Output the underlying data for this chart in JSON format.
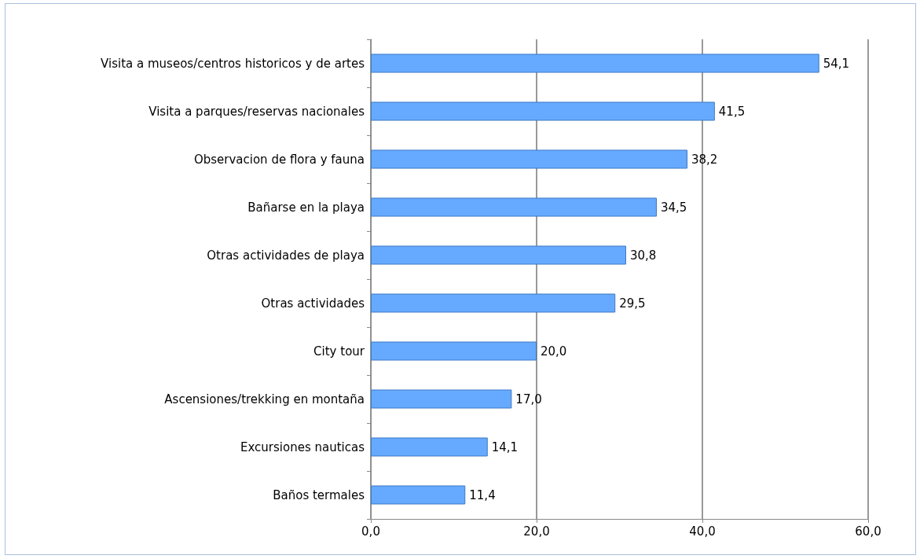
{
  "chart_data": {
    "type": "bar",
    "orientation": "horizontal",
    "categories": [
      "Visita a museos/centros historicos y de artes",
      "Visita a parques/reservas nacionales",
      "Observacion de flora y fauna",
      "Bañarse en la playa",
      "Otras actividades de playa",
      "Otras actividades",
      "City tour",
      "Ascensiones/trekking en montaña",
      "Excursiones nauticas",
      "Baños termales"
    ],
    "values": [
      54.1,
      41.5,
      38.2,
      34.5,
      30.8,
      29.5,
      20.0,
      17.0,
      14.1,
      11.4
    ],
    "value_labels": [
      "54,1",
      "41,5",
      "38,2",
      "34,5",
      "30,8",
      "29,5",
      "20,0",
      "17,0",
      "14,1",
      "11,4"
    ],
    "color": "#66aaff",
    "xlim": [
      0,
      60
    ],
    "xticks": [
      {
        "value": 0,
        "label": "0,0"
      },
      {
        "value": 20,
        "label": "20,0"
      },
      {
        "value": 40,
        "label": "40,0"
      },
      {
        "value": 60,
        "label": "60,0"
      }
    ],
    "grid": "x"
  }
}
